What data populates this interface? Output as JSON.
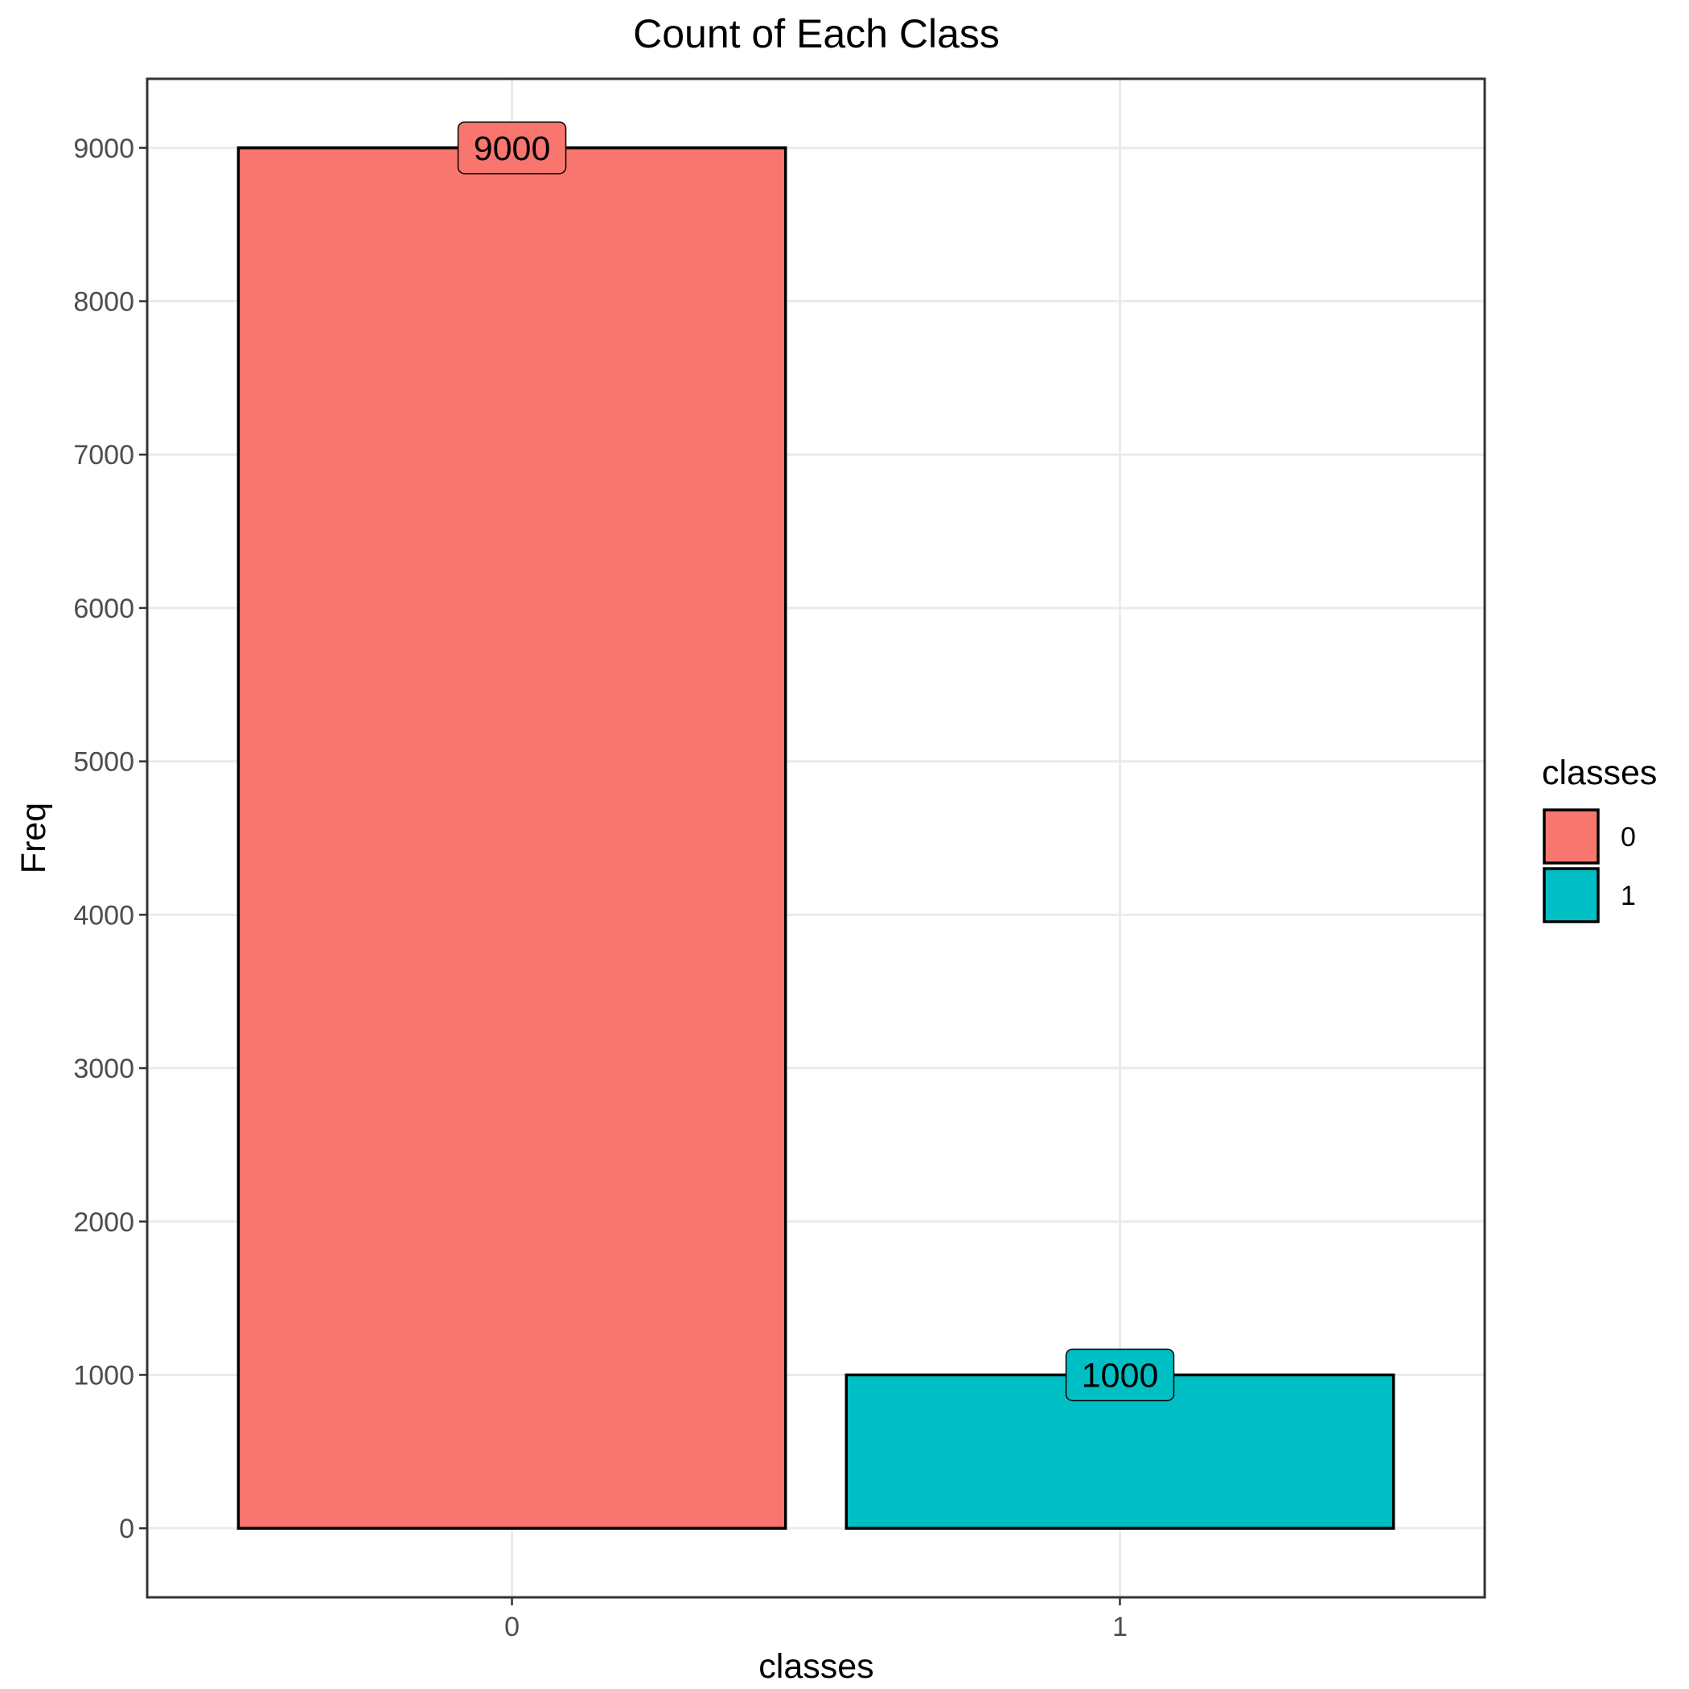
{
  "chart_data": {
    "type": "bar",
    "title": "Count of Each Class",
    "xlabel": "classes",
    "ylabel": "Freq",
    "categories": [
      "0",
      "1"
    ],
    "values": [
      9000,
      1000
    ],
    "data_labels": [
      "9000",
      "1000"
    ],
    "colors": [
      "#F8766D",
      "#00BFC4"
    ],
    "ylim": [
      -450,
      9450
    ],
    "yticks": [
      0,
      1000,
      2000,
      3000,
      4000,
      5000,
      6000,
      7000,
      8000,
      9000
    ],
    "ytick_labels": [
      "0",
      "1000",
      "2000",
      "3000",
      "4000",
      "5000",
      "6000",
      "7000",
      "8000",
      "9000"
    ],
    "grid": true,
    "legend": {
      "title": "classes",
      "position": "right",
      "entries": [
        "0",
        "1"
      ]
    }
  }
}
